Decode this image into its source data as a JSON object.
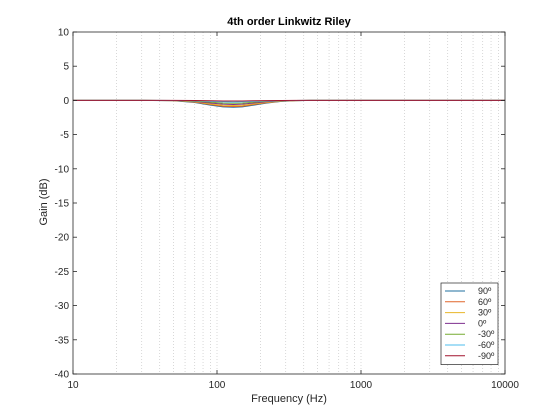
{
  "chart_data": {
    "type": "line",
    "title": "4th order Linkwitz Riley",
    "xlabel": "Frequency (Hz)",
    "ylabel": "Gain (dB)",
    "xscale": "log",
    "xlim": [
      10,
      10000
    ],
    "ylim": [
      -40,
      10
    ],
    "x_ticks": [
      "10",
      "100",
      "1000",
      "10000"
    ],
    "y_ticks": [
      "10",
      "5",
      "0",
      "-5",
      "-10",
      "-15",
      "-20",
      "-25",
      "-30",
      "-35",
      "-40"
    ],
    "grid": "x-minor dotted",
    "legend_position": "bottom-right",
    "x": [
      10,
      30,
      50,
      70,
      90,
      110,
      130,
      150,
      180,
      220,
      280,
      350,
      450,
      1000,
      10000
    ],
    "series": [
      {
        "name": "90º",
        "color": "#1f6f9f",
        "values": [
          0,
          0,
          -0.05,
          -0.3,
          -0.7,
          -0.95,
          -1.0,
          -0.95,
          -0.7,
          -0.4,
          -0.15,
          -0.05,
          0,
          0,
          0
        ]
      },
      {
        "name": "60º",
        "color": "#e0662a",
        "values": [
          0,
          0,
          -0.04,
          -0.25,
          -0.6,
          -0.85,
          -0.9,
          -0.85,
          -0.6,
          -0.35,
          -0.12,
          -0.04,
          0,
          0,
          0
        ]
      },
      {
        "name": "30º",
        "color": "#e8b628",
        "values": [
          0,
          0,
          -0.03,
          -0.2,
          -0.5,
          -0.7,
          -0.75,
          -0.7,
          -0.5,
          -0.28,
          -0.1,
          -0.03,
          0,
          0,
          0
        ]
      },
      {
        "name": "0º",
        "color": "#7e2f8e",
        "values": [
          0,
          0,
          -0.02,
          -0.15,
          -0.38,
          -0.55,
          -0.6,
          -0.55,
          -0.38,
          -0.2,
          -0.07,
          -0.02,
          0,
          0,
          0
        ]
      },
      {
        "name": "-30º",
        "color": "#77ac30",
        "values": [
          0,
          0,
          -0.02,
          -0.1,
          -0.25,
          -0.4,
          -0.42,
          -0.4,
          -0.25,
          -0.13,
          -0.05,
          -0.01,
          0,
          0,
          0
        ]
      },
      {
        "name": "-60º",
        "color": "#4dbeee",
        "values": [
          0,
          0,
          -0.01,
          -0.06,
          -0.15,
          -0.22,
          -0.25,
          -0.22,
          -0.15,
          -0.08,
          -0.03,
          -0.01,
          0,
          0,
          0
        ]
      },
      {
        "name": "-90º",
        "color": "#a2142f",
        "values": [
          0,
          0,
          0,
          -0.02,
          -0.05,
          -0.08,
          -0.08,
          -0.08,
          -0.05,
          -0.03,
          -0.01,
          0,
          0,
          0,
          0
        ]
      }
    ]
  }
}
